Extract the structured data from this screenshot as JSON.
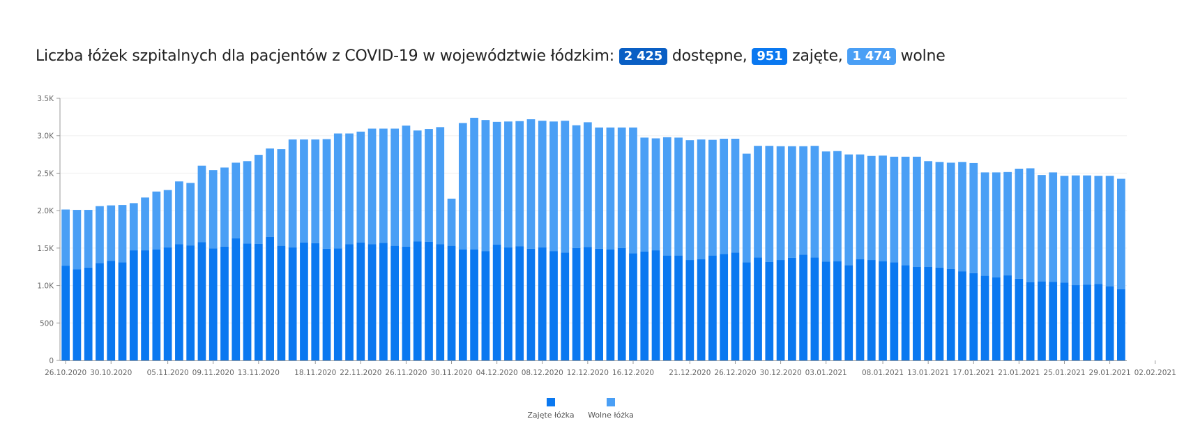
{
  "header": {
    "prefix": "Liczba łóżek szpitalnych dla pacjentów z COVID-19 w województwie łódzkim:",
    "available_value": "2 425",
    "available_label": "dostępne,",
    "occupied_value": "951",
    "occupied_label": "zajęte,",
    "free_value": "1 474",
    "free_label": "wolne"
  },
  "colors": {
    "occupied": "#0a78f0",
    "free": "#4a9ff5",
    "available_badge": "#0a5fc4"
  },
  "chart_data": {
    "type": "bar",
    "stacked": true,
    "ylim": [
      0,
      3500
    ],
    "yticks": [
      {
        "value": 0,
        "label": "0"
      },
      {
        "value": 500,
        "label": "500"
      },
      {
        "value": 1000,
        "label": "1.0K"
      },
      {
        "value": 1500,
        "label": "1.5K"
      },
      {
        "value": 2000,
        "label": "2.0K"
      },
      {
        "value": 2500,
        "label": "2.5K"
      },
      {
        "value": 3000,
        "label": "3.0K"
      },
      {
        "value": 3500,
        "label": "3.5K"
      }
    ],
    "xtick_labels": [
      {
        "index": 0,
        "label": "26.10.2020"
      },
      {
        "index": 4,
        "label": "30.10.2020"
      },
      {
        "index": 9,
        "label": "05.11.2020"
      },
      {
        "index": 13,
        "label": "09.11.2020"
      },
      {
        "index": 17,
        "label": "13.11.2020"
      },
      {
        "index": 22,
        "label": "18.11.2020"
      },
      {
        "index": 26,
        "label": "22.11.2020"
      },
      {
        "index": 30,
        "label": "26.11.2020"
      },
      {
        "index": 34,
        "label": "30.11.2020"
      },
      {
        "index": 38,
        "label": "04.12.2020"
      },
      {
        "index": 42,
        "label": "08.12.2020"
      },
      {
        "index": 46,
        "label": "12.12.2020"
      },
      {
        "index": 50,
        "label": "16.12.2020"
      },
      {
        "index": 55,
        "label": "21.12.2020"
      },
      {
        "index": 59,
        "label": "26.12.2020"
      },
      {
        "index": 63,
        "label": "30.12.2020"
      },
      {
        "index": 67,
        "label": "03.01.2021"
      },
      {
        "index": 72,
        "label": "08.01.2021"
      },
      {
        "index": 76,
        "label": "13.01.2021"
      },
      {
        "index": 80,
        "label": "17.01.2021"
      },
      {
        "index": 84,
        "label": "21.01.2021"
      },
      {
        "index": 88,
        "label": "25.01.2021"
      },
      {
        "index": 92,
        "label": "29.01.2021"
      },
      {
        "index": 96,
        "label": "02.02.2021"
      }
    ],
    "series": [
      {
        "name": "Zajęte łóżka",
        "color": "#0a78f0",
        "values": [
          1265,
          1215,
          1240,
          1300,
          1330,
          1310,
          1470,
          1470,
          1480,
          1510,
          1550,
          1535,
          1580,
          1495,
          1520,
          1630,
          1560,
          1555,
          1650,
          1530,
          1510,
          1575,
          1565,
          1490,
          1495,
          1550,
          1575,
          1550,
          1570,
          1530,
          1520,
          1590,
          1585,
          1550,
          1530,
          1480,
          1480,
          1460,
          1545,
          1510,
          1525,
          1490,
          1510,
          1460,
          1440,
          1500,
          1515,
          1490,
          1480,
          1500,
          1430,
          1455,
          1470,
          1400,
          1400,
          1340,
          1350,
          1400,
          1420,
          1440,
          1310,
          1375,
          1315,
          1340,
          1370,
          1410,
          1375,
          1320,
          1325,
          1270,
          1350,
          1340,
          1325,
          1310,
          1270,
          1250,
          1250,
          1240,
          1220,
          1190,
          1165,
          1130,
          1110,
          1135,
          1090,
          1045,
          1055,
          1050,
          1040,
          1005,
          1010,
          1020,
          990,
          951
        ]
      },
      {
        "name": "Wolne łóżka",
        "color": "#4a9ff5",
        "values": [
          750,
          795,
          770,
          760,
          740,
          765,
          630,
          705,
          775,
          765,
          840,
          835,
          1020,
          1045,
          1055,
          1010,
          1100,
          1190,
          1180,
          1290,
          1440,
          1375,
          1385,
          1465,
          1535,
          1480,
          1480,
          1545,
          1525,
          1565,
          1615,
          1480,
          1505,
          1565,
          630,
          1690,
          1760,
          1750,
          1640,
          1680,
          1670,
          1730,
          1690,
          1730,
          1760,
          1640,
          1665,
          1620,
          1630,
          1610,
          1680,
          1520,
          1495,
          1580,
          1575,
          1600,
          1600,
          1545,
          1540,
          1520,
          1450,
          1490,
          1550,
          1520,
          1490,
          1450,
          1490,
          1470,
          1470,
          1480,
          1400,
          1390,
          1410,
          1410,
          1450,
          1470,
          1410,
          1410,
          1420,
          1460,
          1470,
          1380,
          1400,
          1380,
          1470,
          1520,
          1420,
          1460,
          1425,
          1465,
          1460,
          1445,
          1475,
          1474
        ]
      }
    ]
  },
  "legend": [
    {
      "label": "Zajęte łóżka",
      "color": "#0a78f0"
    },
    {
      "label": "Wolne łóżka",
      "color": "#4a9ff5"
    }
  ]
}
